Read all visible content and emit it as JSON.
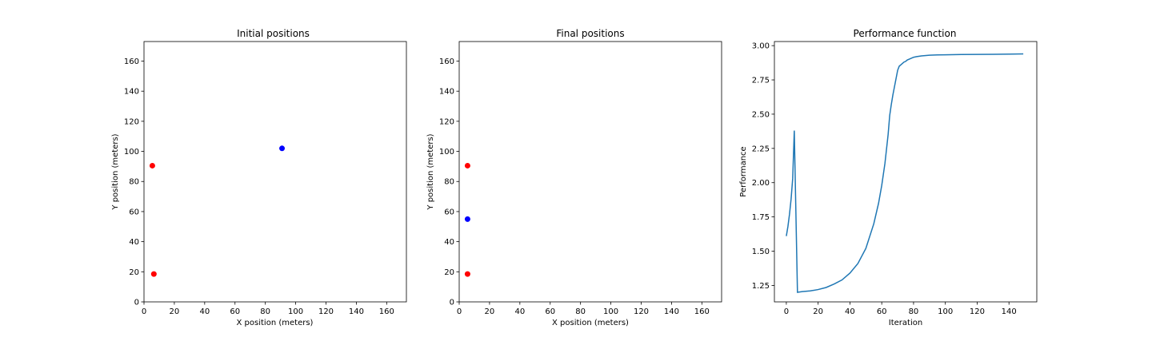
{
  "chart_data": [
    {
      "type": "scatter",
      "title": "Initial positions",
      "xlabel": "X position (meters)",
      "ylabel": "Y position (meters)",
      "xlim": [
        0,
        173
      ],
      "ylim": [
        0,
        173
      ],
      "xticks": [
        0,
        20,
        40,
        60,
        80,
        100,
        120,
        140,
        160
      ],
      "yticks": [
        0,
        20,
        40,
        60,
        80,
        100,
        120,
        140,
        160
      ],
      "grid": false,
      "series": [
        {
          "color": "#ff0000",
          "points": [
            [
              5.5,
              90.5
            ],
            [
              6.5,
              18.5
            ]
          ]
        },
        {
          "color": "#0000ff",
          "points": [
            [
              91,
              102
            ]
          ]
        }
      ]
    },
    {
      "type": "scatter",
      "title": "Final positions",
      "xlabel": "X position (meters)",
      "ylabel": "Y position (meters)",
      "xlim": [
        0,
        173
      ],
      "ylim": [
        0,
        173
      ],
      "xticks": [
        0,
        20,
        40,
        60,
        80,
        100,
        120,
        140,
        160
      ],
      "yticks": [
        0,
        20,
        40,
        60,
        80,
        100,
        120,
        140,
        160
      ],
      "grid": false,
      "series": [
        {
          "color": "#ff0000",
          "points": [
            [
              5.5,
              90.5
            ],
            [
              5.5,
              18.5
            ]
          ]
        },
        {
          "color": "#0000ff",
          "points": [
            [
              5.5,
              55
            ]
          ]
        }
      ]
    },
    {
      "type": "line",
      "title": "Performance function",
      "xlabel": "Iteration",
      "ylabel": "Performance",
      "xlim": [
        -7.5,
        157.5
      ],
      "ylim": [
        1.13,
        3.03
      ],
      "xticks": [
        0,
        20,
        40,
        60,
        80,
        100,
        120,
        140
      ],
      "yticks": [
        "1.25",
        "1.50",
        "1.75",
        "2.00",
        "2.25",
        "2.50",
        "2.75",
        "3.00"
      ],
      "grid": false,
      "series": [
        {
          "color": "#1f77b4",
          "x": [
            0,
            1,
            2,
            3,
            4,
            5,
            6,
            7,
            10,
            15,
            20,
            25,
            30,
            35,
            40,
            45,
            50,
            55,
            58,
            60,
            62,
            64,
            65,
            66,
            67,
            68,
            69,
            70,
            71,
            72,
            73,
            74,
            75,
            76,
            77,
            78,
            80,
            82,
            85,
            90,
            95,
            100,
            110,
            120,
            130,
            140,
            149
          ],
          "y": [
            1.61,
            1.68,
            1.77,
            1.88,
            2.03,
            2.38,
            1.79,
            1.2,
            1.205,
            1.21,
            1.22,
            1.235,
            1.26,
            1.29,
            1.34,
            1.41,
            1.52,
            1.7,
            1.85,
            1.98,
            2.14,
            2.35,
            2.49,
            2.57,
            2.64,
            2.7,
            2.76,
            2.82,
            2.85,
            2.86,
            2.87,
            2.88,
            2.885,
            2.895,
            2.9,
            2.905,
            2.915,
            2.92,
            2.925,
            2.93,
            2.932,
            2.933,
            2.935,
            2.936,
            2.937,
            2.938,
            2.94
          ]
        }
      ]
    }
  ]
}
